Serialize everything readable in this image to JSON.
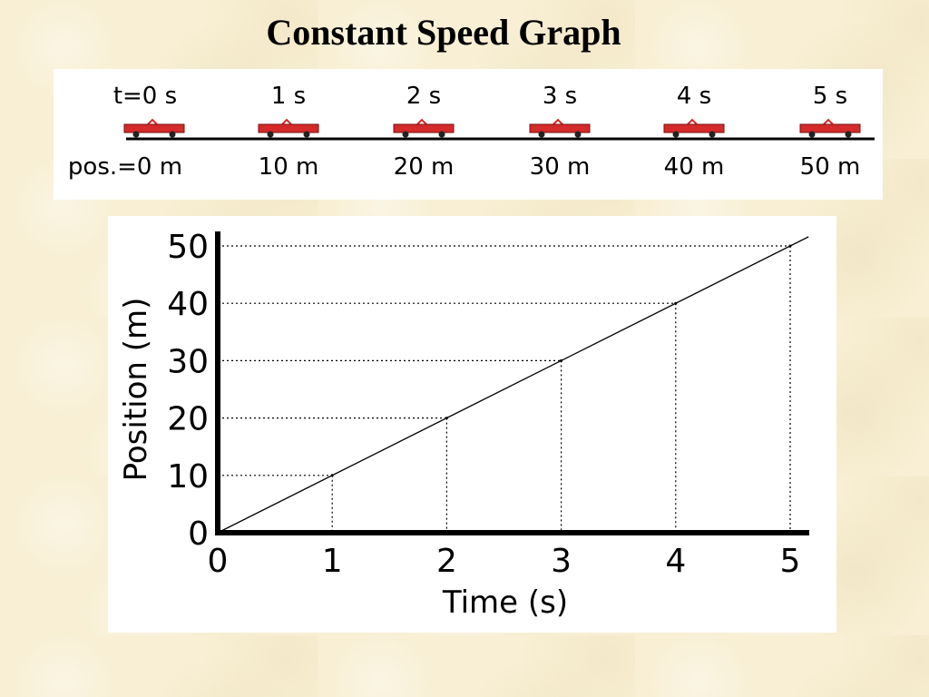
{
  "title": "Constant Speed Graph",
  "timeline": {
    "frames": [
      {
        "time_label": "t=0 s",
        "pos_label": "pos.=0 m"
      },
      {
        "time_label": "1 s",
        "pos_label": "10 m"
      },
      {
        "time_label": "2 s",
        "pos_label": "20 m"
      },
      {
        "time_label": "3 s",
        "pos_label": "30 m"
      },
      {
        "time_label": "4 s",
        "pos_label": "40 m"
      },
      {
        "time_label": "5 s",
        "pos_label": "50 m"
      }
    ],
    "cart_color": "#d42a2a"
  },
  "chart_data": {
    "type": "line",
    "title": "",
    "xlabel": "Time (s)",
    "ylabel": "Position (m)",
    "xlim": [
      0,
      5
    ],
    "ylim": [
      0,
      50
    ],
    "x_ticks": [
      "0",
      "1",
      "2",
      "3",
      "4",
      "5"
    ],
    "y_ticks": [
      "0",
      "10",
      "20",
      "30",
      "40",
      "50"
    ],
    "x": [
      0,
      1,
      2,
      3,
      4,
      5
    ],
    "series": [
      {
        "values": [
          0,
          10,
          20,
          30,
          40,
          50
        ]
      }
    ],
    "grid": "dotted guide lines from each point to both axes",
    "legend": "none"
  }
}
